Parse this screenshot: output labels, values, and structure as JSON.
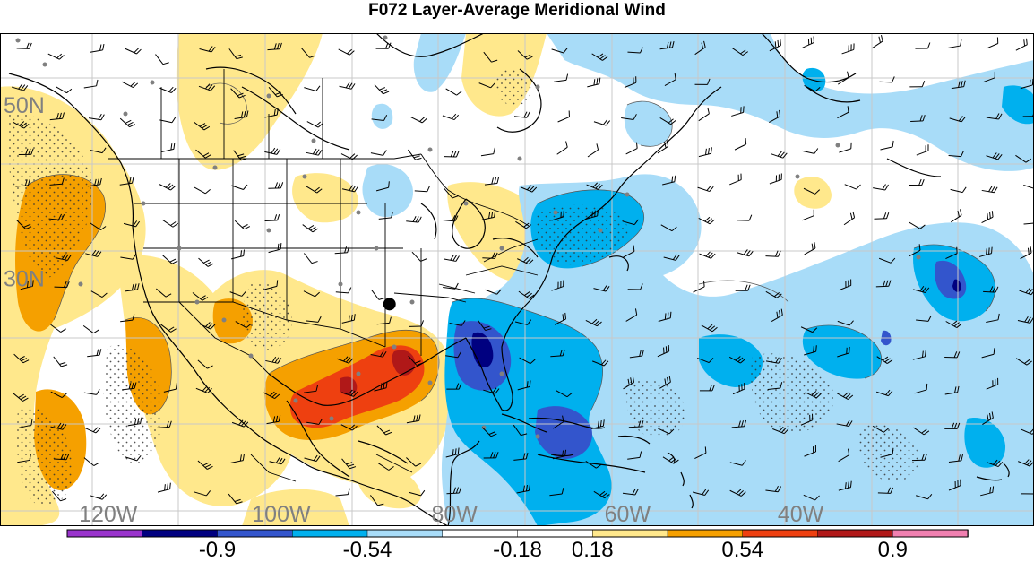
{
  "title": "F072 Layer-Average Meridional Wind",
  "map": {
    "region": "North America / western Atlantic",
    "projection": "cylindrical-equidistant",
    "lat_labels": [
      {
        "text": "50N",
        "lat": 50
      },
      {
        "text": "30N",
        "lat": 30
      }
    ],
    "lon_labels": [
      {
        "text": "120W",
        "lon": -120
      },
      {
        "text": "100W",
        "lon": -100
      },
      {
        "text": "80W",
        "lon": -80
      },
      {
        "text": "60W",
        "lon": -60
      },
      {
        "text": "40W",
        "lon": -40
      }
    ],
    "label_color": "#808080",
    "grid_color": "#c8c8c8",
    "marker": {
      "name": "black-dot",
      "lat": 27,
      "lon": -87.5,
      "color": "#000000"
    },
    "overlays": [
      "shaded meridional wind",
      "contour lines",
      "stippling",
      "wind barbs",
      "station dots",
      "coastlines",
      "political boundaries"
    ]
  },
  "colorbar": {
    "bins": [
      "#9933cc",
      "#000080",
      "#3355cc",
      "#00b0ee",
      "#a8dcf8",
      "#ffffff",
      "#ffffff",
      "#ffe88c",
      "#f5a000",
      "#ee4010",
      "#b01818",
      "#f080b0"
    ],
    "labels": [
      {
        "text": "-0.9",
        "index": 2
      },
      {
        "text": "-0.54",
        "index": 4
      },
      {
        "text": "-0.18",
        "index": 6
      },
      {
        "text": "0.18",
        "index": 7
      },
      {
        "text": "0.54",
        "index": 9
      },
      {
        "text": "0.9",
        "index": 11
      }
    ]
  }
}
